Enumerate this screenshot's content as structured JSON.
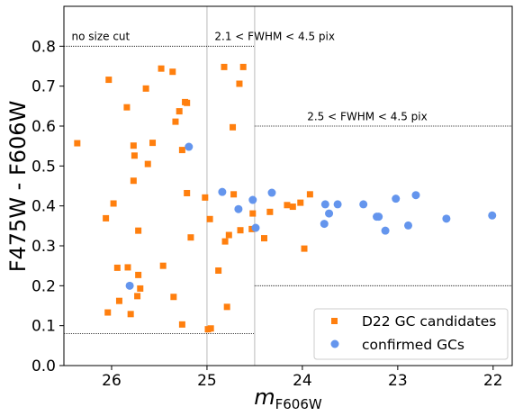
{
  "chart_data": {
    "type": "scatter",
    "xlabel": "m",
    "xlabel_sub": "F606W",
    "ylabel": "F475W - F606W",
    "xlim": [
      26.5,
      21.8
    ],
    "ylim": [
      0.0,
      0.9
    ],
    "x_inverted": true,
    "x_ticks": [
      26,
      25,
      24,
      23,
      22
    ],
    "y_ticks": [
      0.0,
      0.1,
      0.2,
      0.3,
      0.4,
      0.5,
      0.6,
      0.7,
      0.8
    ],
    "x_tick_labels": [
      "26",
      "25",
      "24",
      "23",
      "22"
    ],
    "y_tick_labels": [
      "0.0",
      "0.1",
      "0.2",
      "0.3",
      "0.4",
      "0.5",
      "0.6",
      "0.7",
      "0.8"
    ],
    "grid": false,
    "legend_position": "lower-right",
    "colors": {
      "candidates": "#ff7f0e",
      "confirmed": "#6495ed",
      "cuts": "#000000",
      "divider": "#bbbbbb"
    },
    "annotations": [
      {
        "text": "no size cut",
        "x": 26.42,
        "y": 0.815
      },
      {
        "text": "2.1 < FWHM < 4.5 pix",
        "x": 24.92,
        "y": 0.815
      },
      {
        "text": "2.5 < FWHM < 4.5 pix",
        "x": 23.95,
        "y": 0.615
      }
    ],
    "cut_lines": [
      {
        "x0": 26.5,
        "x1": 24.5,
        "y": 0.08
      },
      {
        "x0": 26.5,
        "x1": 24.5,
        "y": 0.8
      },
      {
        "x0": 24.5,
        "x1": 21.8,
        "y": 0.2
      },
      {
        "x0": 24.5,
        "x1": 21.8,
        "y": 0.6
      }
    ],
    "vlines": [
      {
        "x": 25.0
      },
      {
        "x": 24.5
      }
    ],
    "series": [
      {
        "name": "D22 GC candidates",
        "marker": "square",
        "points": [
          [
            26.36,
            0.557
          ],
          [
            26.03,
            0.716
          ],
          [
            25.84,
            0.647
          ],
          [
            25.64,
            0.694
          ],
          [
            25.57,
            0.558
          ],
          [
            25.48,
            0.744
          ],
          [
            25.36,
            0.736
          ],
          [
            25.29,
            0.637
          ],
          [
            25.23,
            0.66
          ],
          [
            25.21,
            0.658
          ],
          [
            25.33,
            0.611
          ],
          [
            25.26,
            0.54
          ],
          [
            25.77,
            0.551
          ],
          [
            25.76,
            0.526
          ],
          [
            25.62,
            0.505
          ],
          [
            25.77,
            0.463
          ],
          [
            25.21,
            0.432
          ],
          [
            25.02,
            0.421
          ],
          [
            25.98,
            0.406
          ],
          [
            26.06,
            0.369
          ],
          [
            25.72,
            0.338
          ],
          [
            25.17,
            0.321
          ],
          [
            24.97,
            0.367
          ],
          [
            24.82,
            0.748
          ],
          [
            24.62,
            0.748
          ],
          [
            24.66,
            0.706
          ],
          [
            24.73,
            0.597
          ],
          [
            24.72,
            0.429
          ],
          [
            24.81,
            0.311
          ],
          [
            24.77,
            0.327
          ],
          [
            24.65,
            0.339
          ],
          [
            24.53,
            0.342
          ],
          [
            24.52,
            0.381
          ],
          [
            24.4,
            0.319
          ],
          [
            24.34,
            0.385
          ],
          [
            24.16,
            0.402
          ],
          [
            24.1,
            0.398
          ],
          [
            24.02,
            0.408
          ],
          [
            23.92,
            0.429
          ],
          [
            23.98,
            0.293
          ],
          [
            25.94,
            0.245
          ],
          [
            25.83,
            0.246
          ],
          [
            25.72,
            0.227
          ],
          [
            25.46,
            0.25
          ],
          [
            24.88,
            0.238
          ],
          [
            25.73,
            0.174
          ],
          [
            25.7,
            0.193
          ],
          [
            25.35,
            0.172
          ],
          [
            25.92,
            0.162
          ],
          [
            26.04,
            0.133
          ],
          [
            25.8,
            0.129
          ],
          [
            24.79,
            0.147
          ],
          [
            25.26,
            0.103
          ],
          [
            24.99,
            0.091
          ],
          [
            24.96,
            0.093
          ]
        ]
      },
      {
        "name": "confirmed GCs",
        "marker": "circle",
        "points": [
          [
            25.19,
            0.548
          ],
          [
            25.81,
            0.2
          ],
          [
            24.84,
            0.435
          ],
          [
            24.67,
            0.392
          ],
          [
            24.52,
            0.415
          ],
          [
            24.49,
            0.345
          ],
          [
            24.32,
            0.433
          ],
          [
            23.76,
            0.404
          ],
          [
            23.63,
            0.404
          ],
          [
            23.72,
            0.381
          ],
          [
            23.77,
            0.355
          ],
          [
            23.36,
            0.404
          ],
          [
            23.22,
            0.373
          ],
          [
            23.2,
            0.373
          ],
          [
            23.13,
            0.338
          ],
          [
            23.02,
            0.418
          ],
          [
            22.89,
            0.351
          ],
          [
            22.81,
            0.427
          ],
          [
            22.49,
            0.368
          ],
          [
            22.01,
            0.376
          ]
        ]
      }
    ]
  }
}
